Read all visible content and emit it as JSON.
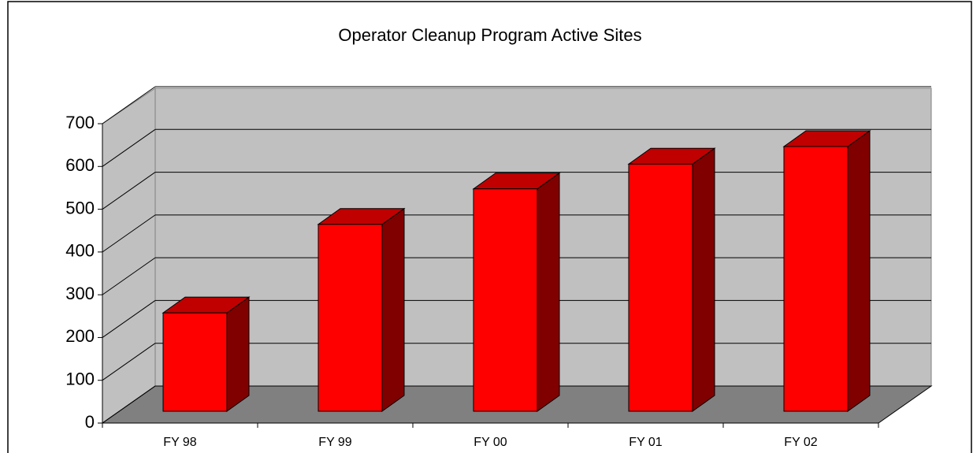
{
  "chart_data": {
    "type": "bar",
    "title": "Operator Cleanup Program Active Sites",
    "categories": [
      "FY 98",
      "FY 99",
      "FY 00",
      "FY 01",
      "FY 02"
    ],
    "values": [
      230,
      437,
      520,
      578,
      619
    ],
    "color": "#ff0000",
    "ylim": [
      0,
      700
    ],
    "yticks": [
      0,
      100,
      200,
      300,
      400,
      500,
      600,
      700
    ],
    "grid": true
  }
}
